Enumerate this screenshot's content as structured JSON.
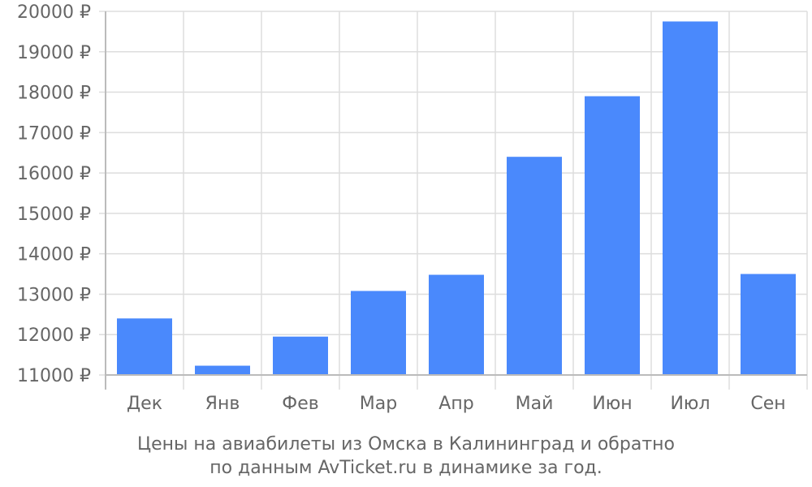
{
  "chart_data": {
    "type": "bar",
    "categories": [
      "Дек",
      "Янв",
      "Фев",
      "Мар",
      "Апр",
      "Май",
      "Июн",
      "Июл",
      "Сен"
    ],
    "series": [
      {
        "values": [
          12400,
          11230,
          11950,
          13080,
          13480,
          16400,
          17900,
          19750,
          13500
        ]
      }
    ],
    "y_ticks": [
      "11000 ₽",
      "12000 ₽",
      "13000 ₽",
      "14000 ₽",
      "15000 ₽",
      "16000 ₽",
      "17000 ₽",
      "18000 ₽",
      "19000 ₽",
      "20000 ₽"
    ],
    "ylim": [
      11000,
      20000
    ],
    "grid": true,
    "bar_color": "#4a89fc",
    "grid_color": "#dddddd",
    "axis_color": "#bbbbbb"
  },
  "caption": {
    "line1": "Цены на авиабилеты из Омска в Калининград и обратно",
    "line2": "по данным AvTicket.ru в динамике за год."
  }
}
